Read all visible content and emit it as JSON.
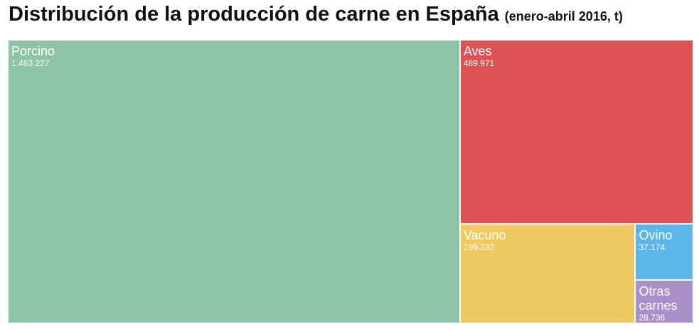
{
  "chart_data": {
    "type": "treemap",
    "title": "Distribución de la producción de carne en España",
    "subtitle": "(enero-abril 2016, t)",
    "categories": [
      "Porcino",
      "Aves",
      "Vacuno",
      "Ovino",
      "Otras carnes"
    ],
    "values": [
      1463227,
      489971,
      199332,
      37174,
      28736
    ],
    "value_labels": [
      "1.463.227",
      "489.971",
      "199.332",
      "37.174",
      "28.736"
    ],
    "colors": [
      "#8ec3a7",
      "#dd5253",
      "#efca62",
      "#5db6e9",
      "#a990c8"
    ]
  }
}
